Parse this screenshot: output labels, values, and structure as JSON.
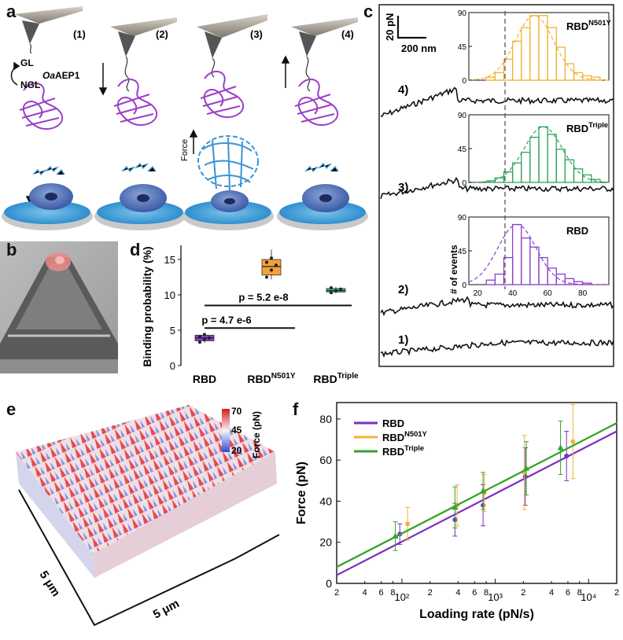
{
  "panels": {
    "a": {
      "letter": "a",
      "steps": [
        "(1)",
        "(2)",
        "(3)",
        "(4)"
      ],
      "gl_label": "GL",
      "ngl_label": "NGL",
      "enzyme_italic": "Oa",
      "enzyme_rest": "AEP1",
      "force_label": "Force"
    },
    "b": {
      "letter": "b"
    },
    "c": {
      "letter": "c",
      "scale_force": "20 pN",
      "scale_dist": "200 nm",
      "trace_labels": [
        "4)",
        "3)",
        "2)",
        "1)"
      ],
      "hist_names": [
        {
          "base": "RBD",
          "sup": "N501Y",
          "color": "#f2b233"
        },
        {
          "base": "RBD",
          "sup": "Triple",
          "color": "#2ea55a"
        },
        {
          "base": "RBD",
          "sup": "",
          "color": "#8b3fc9"
        }
      ],
      "hist_yticks": [
        [
          "90",
          "45",
          "0"
        ],
        [
          "90",
          "45",
          "0"
        ],
        [
          "90",
          "45",
          "0"
        ]
      ],
      "hist_ylabel": "# of events",
      "hist_xticks": [
        "20",
        "40",
        "60",
        "80"
      ]
    },
    "d": {
      "letter": "d",
      "ylabel": "Binding probability (%)",
      "yticks": [
        "0",
        "5",
        "10",
        "15"
      ],
      "categories": [
        {
          "base": "RBD",
          "sup": ""
        },
        {
          "base": "RBD",
          "sup": "N501Y"
        },
        {
          "base": "RBD",
          "sup": "Triple"
        }
      ],
      "p_values": [
        "p = 4.7 e-6",
        "p = 5.2 e-8"
      ]
    },
    "e": {
      "letter": "e",
      "colorbar_ticks": [
        "70",
        "45",
        "20"
      ],
      "colorbar_label": "Force (pN)",
      "axis_label_left": "5 μm",
      "axis_label_bottom": "5 μm"
    },
    "f": {
      "letter": "f",
      "xlabel": "Loading rate (pN/s)",
      "ylabel": "Force (pN)"
    }
  },
  "chart_data": [
    {
      "id": "d",
      "type": "box",
      "ylabel": "Binding probability (%)",
      "ylim": [
        0,
        17
      ],
      "categories": [
        "RBD",
        "RBDN501Y",
        "RBDTriple"
      ],
      "boxes": [
        {
          "name": "RBD",
          "color": "#8b3fc9",
          "q1": 3.5,
          "median": 3.9,
          "q3": 4.3,
          "min": 3.2,
          "max": 4.5,
          "points": [
            3.3,
            3.7,
            3.9,
            4.1,
            4.4
          ]
        },
        {
          "name": "RBDN501Y",
          "color": "#f2a23a",
          "q1": 12.8,
          "median": 14.0,
          "q3": 15.0,
          "min": 12.2,
          "max": 16.4,
          "points": [
            12.5,
            13.5,
            14.2,
            14.6,
            15.2
          ]
        },
        {
          "name": "RBDTriple",
          "color": "#3bbf8a",
          "q1": 10.4,
          "median": 10.6,
          "q3": 10.9,
          "min": 10.2,
          "max": 11.1,
          "points": [
            10.3,
            10.6,
            10.8,
            11.0
          ]
        }
      ],
      "brackets": [
        {
          "from": "RBD",
          "to": "RBDN501Y",
          "label": "p = 4.7 e-6",
          "y": 5.3
        },
        {
          "from": "RBD",
          "to": "RBDTriple",
          "label": "p = 5.2 e-8",
          "y": 8.5
        }
      ]
    },
    {
      "id": "f",
      "type": "scatter",
      "xscale": "log",
      "xlim": [
        20,
        20000
      ],
      "ylim": [
        0,
        88
      ],
      "xlabel": "Loading rate (pN/s)",
      "ylabel": "Force (pN)",
      "xtick_major": [
        "10²",
        "10³",
        "10⁴"
      ],
      "xtick_minor": [
        "2",
        "4",
        "6",
        "8",
        "2",
        "4",
        "6",
        "8",
        "2",
        "4",
        "6",
        "8",
        "2"
      ],
      "yticks": [
        0,
        20,
        40,
        60,
        80
      ],
      "legend_position": "top-left",
      "series": [
        {
          "name": "RBD",
          "color": "#7b2fbe",
          "points": [
            {
              "x": 95,
              "y": 24,
              "err": 5
            },
            {
              "x": 370,
              "y": 31,
              "err": 8
            },
            {
              "x": 740,
              "y": 38,
              "err": 10
            },
            {
              "x": 2100,
              "y": 52,
              "err": 14
            },
            {
              "x": 5800,
              "y": 62,
              "err": 12
            }
          ],
          "fit": {
            "x": [
              20,
              20000
            ],
            "y": [
              4,
              74
            ]
          }
        },
        {
          "name": "RBDN501Y",
          "color": "#f2b233",
          "points": [
            {
              "x": 115,
              "y": 29,
              "err": 8
            },
            {
              "x": 390,
              "y": 38,
              "err": 10
            },
            {
              "x": 760,
              "y": 44,
              "err": 9
            },
            {
              "x": 2050,
              "y": 54,
              "err": 18
            },
            {
              "x": 6800,
              "y": 69,
              "err": 18
            }
          ],
          "fit": {
            "x": [
              20,
              20000
            ],
            "y": [
              8,
              78
            ]
          }
        },
        {
          "name": "RBDTriple",
          "color": "#2ea52e",
          "points": [
            {
              "x": 85,
              "y": 23,
              "err": 7
            },
            {
              "x": 370,
              "y": 37,
              "err": 10
            },
            {
              "x": 740,
              "y": 45,
              "err": 9
            },
            {
              "x": 2150,
              "y": 56,
              "err": 13
            },
            {
              "x": 5000,
              "y": 66,
              "err": 13
            }
          ],
          "fit": {
            "x": [
              20,
              20000
            ],
            "y": [
              8,
              78
            ]
          }
        }
      ]
    },
    {
      "id": "c-hist",
      "type": "bar",
      "xlabel": "",
      "ylabel": "# of events",
      "xlim": [
        15,
        95
      ],
      "ylim": [
        0,
        90
      ],
      "bin_edges": [
        20,
        25,
        30,
        35,
        40,
        45,
        50,
        55,
        60,
        65,
        70,
        75,
        80,
        85,
        90
      ],
      "series": [
        {
          "name": "RBDN501Y",
          "color": "#f2b233",
          "values": [
            0,
            4,
            10,
            28,
            52,
            70,
            86,
            86,
            70,
            44,
            22,
            10,
            6,
            4
          ]
        },
        {
          "name": "RBDTriple",
          "color": "#2ea55a",
          "values": [
            0,
            2,
            6,
            14,
            26,
            40,
            60,
            74,
            64,
            44,
            30,
            18,
            10,
            4
          ]
        },
        {
          "name": "RBD",
          "color": "#8b3fc9",
          "values": [
            0,
            6,
            14,
            36,
            80,
            62,
            50,
            36,
            22,
            14,
            8,
            4,
            2,
            0
          ]
        }
      ],
      "vline_x": 43
    }
  ]
}
